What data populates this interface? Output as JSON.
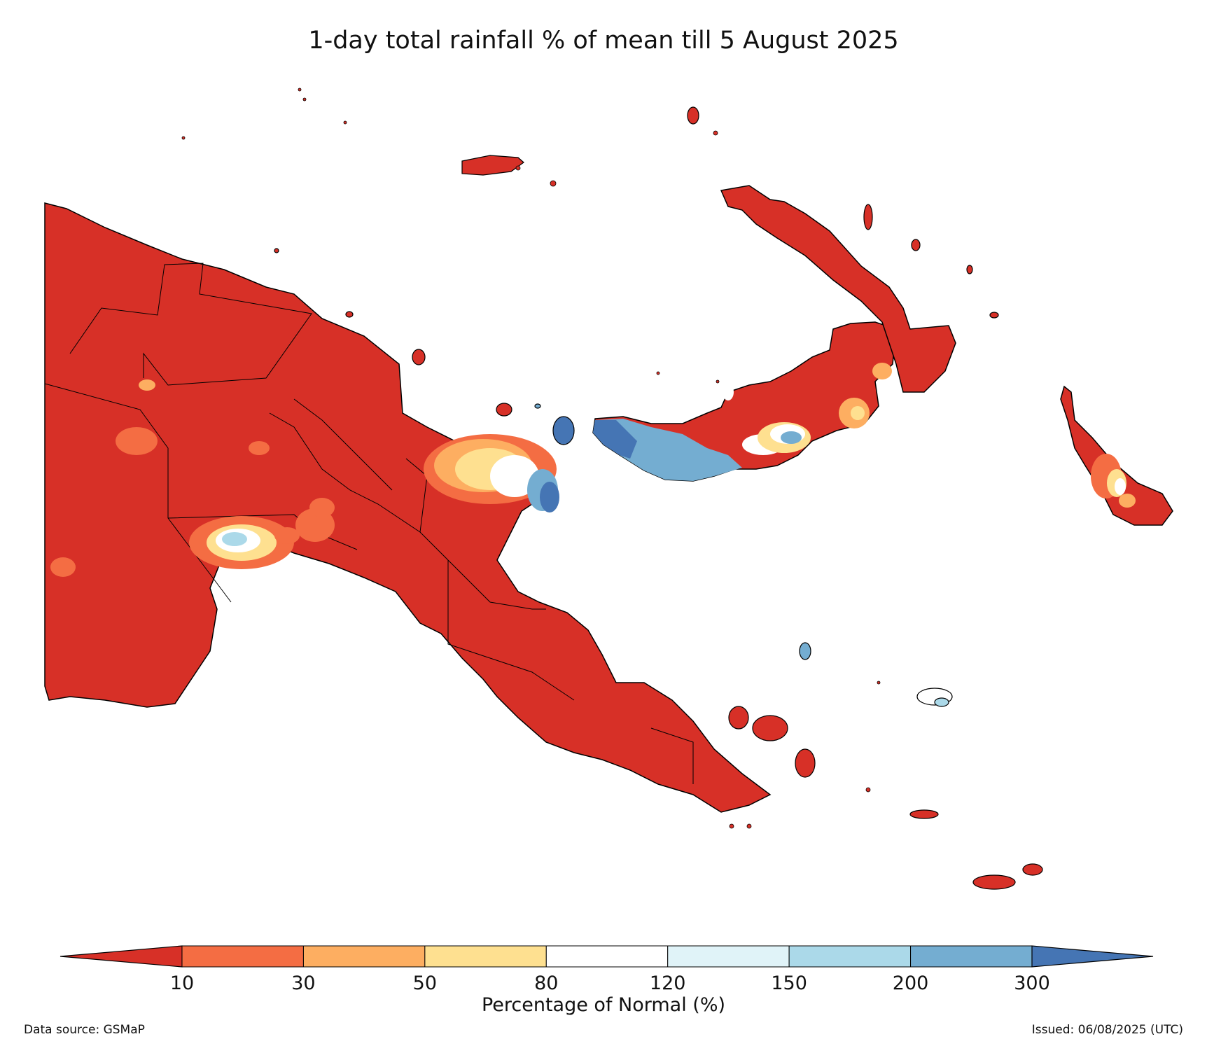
{
  "title": "1-day total rainfall % of mean till 5 August 2025",
  "colorbar": {
    "label": "Percentage of Normal (%)",
    "ticks": [
      "10",
      "30",
      "50",
      "80",
      "120",
      "150",
      "200",
      "300"
    ],
    "colors": {
      "below_10": "#d73027",
      "10-30": "#f46d43",
      "30-50": "#fdae61",
      "50-80": "#fee090",
      "80-120": "#ffffff",
      "120-150": "#e0f3f8",
      "150-200": "#abd9e9",
      "200-300": "#74add1",
      "above_300": "#4575b4"
    }
  },
  "footer": {
    "source": "Data source: GSMaP",
    "issued": "Issued: 06/08/2025 (UTC)"
  }
}
